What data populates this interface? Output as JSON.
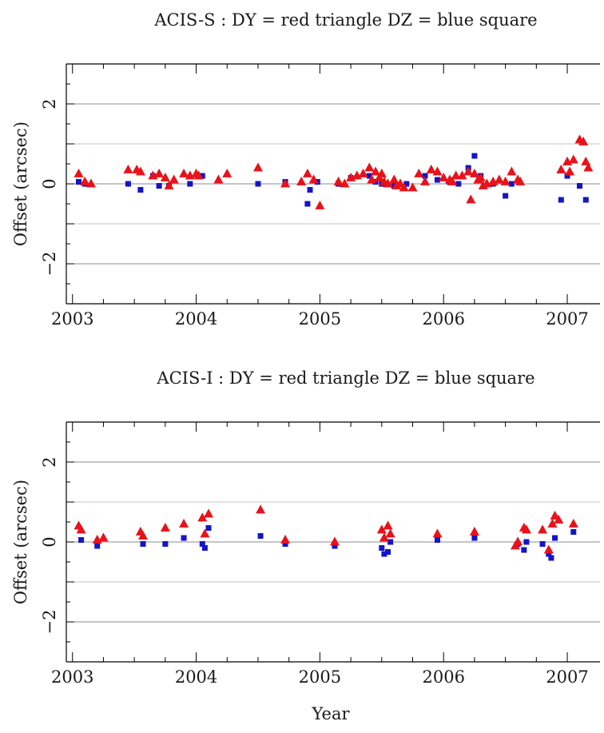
{
  "chart_data": [
    {
      "type": "scatter",
      "title": "ACIS-S : DY = red triangle  DZ = blue square",
      "xlabel": "Year",
      "ylabel": "Offset (arcsec)",
      "xlim": [
        2002.95,
        2007.2
      ],
      "ylim": [
        -3,
        3
      ],
      "x_ticks": [
        "2003",
        "2004",
        "2005",
        "2006",
        "2007"
      ],
      "y_ticks": [
        "2",
        "0",
        "−2"
      ],
      "grid": "horizontal",
      "series": [
        {
          "name": "DY",
          "marker": "triangle",
          "color": "#e8121a",
          "x": [
            2003.05,
            2003.1,
            2003.15,
            2003.45,
            2003.52,
            2003.55,
            2003.65,
            2003.7,
            2003.75,
            2003.82,
            2003.9,
            2003.95,
            2004.0,
            2004.18,
            2004.25,
            2004.5,
            2004.72,
            2004.85,
            2004.9,
            2004.95,
            2005.0,
            2005.15,
            2005.2,
            2005.25,
            2005.3,
            2005.35,
            2005.4,
            2005.42,
            2005.45,
            2005.48,
            2005.5,
            2005.55,
            2005.6,
            2005.65,
            2005.75,
            2005.8,
            2005.85,
            2005.9,
            2005.95,
            2006.0,
            2006.05,
            2006.1,
            2006.15,
            2006.2,
            2006.22,
            2006.25,
            2006.28,
            2006.3,
            2006.35,
            2006.4,
            2006.5,
            2006.55,
            2006.6,
            2006.95,
            2007.0,
            2007.05,
            2007.1,
            2007.15
          ],
          "values": [
            0.25,
            0.05,
            0.0,
            0.35,
            0.35,
            0.3,
            0.2,
            0.25,
            0.15,
            0.1,
            0.25,
            0.2,
            0.25,
            0.1,
            0.25,
            0.4,
            0.0,
            0.05,
            0.25,
            0.1,
            -0.55,
            0.05,
            0.0,
            0.15,
            0.2,
            0.25,
            0.4,
            0.1,
            0.3,
            0.15,
            0.25,
            0.0,
            0.1,
            0.0,
            -0.1,
            0.25,
            0.05,
            0.35,
            0.3,
            0.15,
            0.1,
            0.2,
            0.2,
            0.3,
            -0.4,
            0.25,
            0.1,
            0.15,
            0.0,
            0.05,
            0.05,
            0.3,
            0.1,
            0.35,
            0.55,
            0.6,
            1.1,
            0.55
          ],
          "x_extra": [
            2003.78,
            2004.02,
            2005.52,
            2005.62,
            2005.68,
            2006.07,
            2006.32,
            2006.45,
            2006.62,
            2007.02,
            2007.13,
            2007.17
          ],
          "values_extra": [
            -0.05,
            0.2,
            0.05,
            -0.05,
            -0.1,
            0.05,
            -0.05,
            0.1,
            0.05,
            0.3,
            1.05,
            0.4
          ]
        },
        {
          "name": "DZ",
          "marker": "square",
          "color": "#1414c8",
          "x": [
            2003.05,
            2003.1,
            2003.45,
            2003.55,
            2003.65,
            2003.7,
            2003.78,
            2003.95,
            2004.05,
            2004.5,
            2004.72,
            2004.9,
            2004.92,
            2004.98,
            2005.15,
            2005.25,
            2005.4,
            2005.45,
            2005.5,
            2005.6,
            2005.7,
            2005.85,
            2005.95,
            2006.05,
            2006.12,
            2006.2,
            2006.25,
            2006.3,
            2006.4,
            2006.5,
            2006.55,
            2006.95,
            2007.0,
            2007.1,
            2007.15
          ],
          "values": [
            0.05,
            0.0,
            0.0,
            -0.15,
            0.2,
            -0.05,
            -0.05,
            0.0,
            0.2,
            0.0,
            0.05,
            -0.5,
            -0.15,
            0.05,
            0.0,
            0.15,
            0.2,
            0.05,
            0.0,
            -0.05,
            0.0,
            0.2,
            0.1,
            0.05,
            0.0,
            0.4,
            0.7,
            0.2,
            0.0,
            -0.3,
            0.0,
            -0.4,
            0.2,
            -0.05,
            -0.4
          ]
        }
      ]
    },
    {
      "type": "scatter",
      "title": "ACIS-I : DY = red triangle  DZ = blue square",
      "xlabel": "Year",
      "ylabel": "Offset (arcsec)",
      "xlim": [
        2002.95,
        2007.2
      ],
      "ylim": [
        -3,
        3
      ],
      "x_ticks": [
        "2003",
        "2004",
        "2005",
        "2006",
        "2007"
      ],
      "y_ticks": [
        "2",
        "0",
        "−2"
      ],
      "grid": "horizontal",
      "series": [
        {
          "name": "DY",
          "marker": "triangle",
          "color": "#e8121a",
          "x": [
            2003.05,
            2003.07,
            2003.2,
            2003.25,
            2003.55,
            2003.57,
            2003.75,
            2003.9,
            2004.05,
            2004.07,
            2004.1,
            2004.52,
            2004.72,
            2005.12,
            2005.5,
            2005.52,
            2005.55,
            2005.57,
            2005.95,
            2006.25,
            2006.58,
            2006.6,
            2006.65,
            2006.67,
            2006.8,
            2006.85,
            2006.88,
            2006.9,
            2006.93,
            2007.05
          ],
          "values": [
            0.4,
            0.3,
            0.05,
            0.1,
            0.25,
            0.15,
            0.35,
            0.45,
            0.6,
            0.2,
            0.7,
            0.8,
            0.05,
            0.0,
            0.3,
            0.1,
            0.4,
            0.2,
            0.2,
            0.25,
            -0.1,
            0.0,
            0.35,
            0.3,
            0.3,
            -0.2,
            0.45,
            0.65,
            0.55,
            0.45
          ]
        },
        {
          "name": "DZ",
          "marker": "square",
          "color": "#1414c8",
          "x": [
            2003.07,
            2003.2,
            2003.57,
            2003.75,
            2003.9,
            2004.05,
            2004.07,
            2004.1,
            2004.52,
            2004.72,
            2005.12,
            2005.5,
            2005.52,
            2005.55,
            2005.57,
            2005.95,
            2006.25,
            2006.6,
            2006.65,
            2006.67,
            2006.8,
            2006.85,
            2006.87,
            2006.9,
            2007.05
          ],
          "values": [
            0.05,
            -0.1,
            -0.05,
            -0.05,
            0.1,
            -0.05,
            -0.15,
            0.35,
            0.15,
            -0.05,
            -0.1,
            -0.15,
            -0.3,
            -0.25,
            0.0,
            0.05,
            0.1,
            -0.05,
            -0.2,
            0.0,
            -0.05,
            -0.3,
            -0.4,
            0.1,
            0.25
          ]
        }
      ]
    }
  ]
}
